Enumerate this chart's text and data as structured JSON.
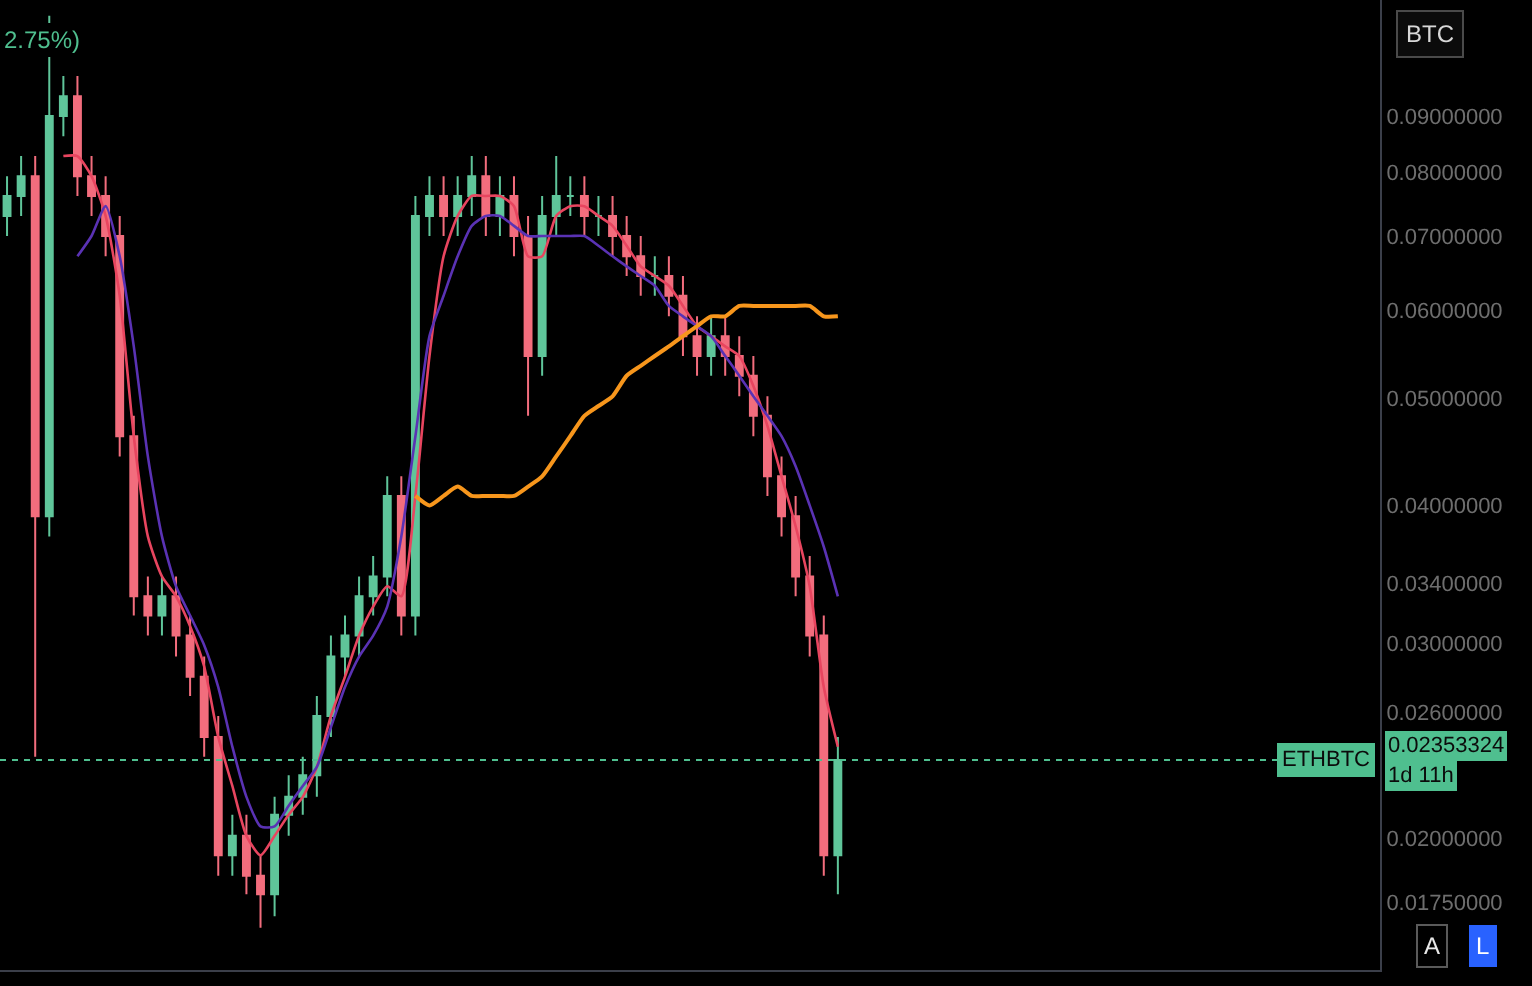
{
  "chart_data": {
    "type": "candlestick",
    "categories": [
      null,
      null,
      null,
      null,
      null,
      null,
      null,
      null,
      null,
      null,
      null,
      null,
      null,
      null,
      null,
      null,
      null,
      null,
      null,
      null,
      null,
      null,
      null,
      null,
      null,
      null,
      null,
      null,
      null,
      null,
      null,
      null,
      null,
      null,
      null,
      null,
      null,
      null,
      null,
      null,
      null,
      null,
      null,
      null,
      null,
      null,
      null,
      null,
      null,
      null,
      null,
      null,
      null,
      null,
      null,
      null,
      null,
      null,
      null,
      null,
      null,
      null,
      null,
      null,
      null,
      null,
      null,
      null,
      null,
      null,
      null,
      null,
      null,
      null,
      null,
      null,
      null,
      null,
      null,
      null,
      null,
      null,
      null,
      null,
      null,
      null,
      null,
      null,
      null,
      null,
      null,
      null,
      null,
      null,
      null,
      null,
      null,
      null
    ],
    "ohlc": [
      [
        0.0731,
        0.0794,
        0.0701,
        0.0762
      ],
      [
        0.0762,
        0.0828,
        0.0731,
        0.0794
      ],
      [
        0.0794,
        0.0828,
        0.0237,
        0.0391
      ],
      [
        0.0391,
        0.1109,
        0.0375,
        0.09
      ],
      [
        0.09,
        0.0978,
        0.0863,
        0.0938
      ],
      [
        0.0938,
        0.0978,
        0.0762,
        0.0794
      ],
      [
        0.0794,
        0.0828,
        0.0731,
        0.0762
      ],
      [
        0.0762,
        0.0794,
        0.0672,
        0.0701
      ],
      [
        0.0701,
        0.0731,
        0.0443,
        0.0462
      ],
      [
        0.0462,
        0.0482,
        0.0318,
        0.0331
      ],
      [
        0.0331,
        0.0345,
        0.0305,
        0.0318
      ],
      [
        0.0318,
        0.0345,
        0.0305,
        0.0331
      ],
      [
        0.0331,
        0.0345,
        0.0292,
        0.0305
      ],
      [
        0.0305,
        0.0318,
        0.0269,
        0.028
      ],
      [
        0.028,
        0.0292,
        0.0237,
        0.0247
      ],
      [
        0.0247,
        0.0258,
        0.0185,
        0.0193
      ],
      [
        0.0193,
        0.021,
        0.0185,
        0.0201
      ],
      [
        0.0201,
        0.021,
        0.0178,
        0.0185
      ],
      [
        0.0185,
        0.0193,
        0.0166,
        0.0178
      ],
      [
        0.0178,
        0.0218,
        0.017,
        0.021
      ],
      [
        0.021,
        0.0228,
        0.0201,
        0.0218
      ],
      [
        0.0218,
        0.0237,
        0.021,
        0.0228
      ],
      [
        0.0228,
        0.0269,
        0.0218,
        0.0258
      ],
      [
        0.0258,
        0.0305,
        0.0247,
        0.0292
      ],
      [
        0.0292,
        0.0318,
        0.028,
        0.0305
      ],
      [
        0.0305,
        0.0345,
        0.0292,
        0.0331
      ],
      [
        0.0331,
        0.036,
        0.0318,
        0.0345
      ],
      [
        0.0345,
        0.0425,
        0.0331,
        0.0408
      ],
      [
        0.0408,
        0.0425,
        0.0305,
        0.0318
      ],
      [
        0.0318,
        0.0762,
        0.0305,
        0.0731
      ],
      [
        0.0731,
        0.0794,
        0.0701,
        0.0762
      ],
      [
        0.0762,
        0.0794,
        0.0701,
        0.0731
      ],
      [
        0.0731,
        0.0794,
        0.0701,
        0.0762
      ],
      [
        0.0762,
        0.0828,
        0.0731,
        0.0794
      ],
      [
        0.0794,
        0.0828,
        0.0701,
        0.0731
      ],
      [
        0.0731,
        0.0794,
        0.0701,
        0.0762
      ],
      [
        0.0762,
        0.0794,
        0.0672,
        0.0701
      ],
      [
        0.0701,
        0.0731,
        0.0482,
        0.0546
      ],
      [
        0.0546,
        0.0762,
        0.0524,
        0.0731
      ],
      [
        0.0731,
        0.0828,
        0.0701,
        0.0762
      ],
      [
        0.0762,
        0.0794,
        0.0731,
        0.0762
      ],
      [
        0.0762,
        0.0794,
        0.0701,
        0.0731
      ],
      [
        0.0731,
        0.0762,
        0.0701,
        0.0731
      ],
      [
        0.0731,
        0.0762,
        0.0672,
        0.0701
      ],
      [
        0.0701,
        0.0731,
        0.0645,
        0.0672
      ],
      [
        0.0672,
        0.0701,
        0.0619,
        0.0645
      ],
      [
        0.0645,
        0.0672,
        0.0619,
        0.0645
      ],
      [
        0.0645,
        0.0672,
        0.0593,
        0.0619
      ],
      [
        0.0619,
        0.0645,
        0.0546,
        0.0569
      ],
      [
        0.0569,
        0.0593,
        0.0524,
        0.0546
      ],
      [
        0.0546,
        0.0593,
        0.0524,
        0.0569
      ],
      [
        0.0569,
        0.0593,
        0.0524,
        0.0546
      ],
      [
        0.0546,
        0.0569,
        0.0502,
        0.0524
      ],
      [
        0.0524,
        0.0546,
        0.0462,
        0.0482
      ],
      [
        0.0482,
        0.0502,
        0.0408,
        0.0425
      ],
      [
        0.0425,
        0.0443,
        0.0375,
        0.0391
      ],
      [
        0.0391,
        0.0408,
        0.0331,
        0.0345
      ],
      [
        0.0345,
        0.036,
        0.0292,
        0.0305
      ],
      [
        0.0305,
        0.0318,
        0.0185,
        0.0193
      ],
      [
        0.0193,
        0.0247,
        0.0178,
        0.02353324
      ],
      null,
      null,
      null,
      null,
      null,
      null,
      null,
      null,
      null,
      null,
      null,
      null,
      null,
      null,
      null,
      null,
      null,
      null,
      null,
      null,
      null,
      null,
      null,
      null,
      null,
      null,
      null,
      null,
      null,
      null,
      null,
      null,
      null,
      null,
      null,
      null,
      null,
      null
    ],
    "colors": [
      "#5fc59a",
      "#5fc59a",
      "#f26d7d",
      "#5fc59a",
      "#5fc59a",
      "#f26d7d",
      "#f26d7d",
      "#f26d7d",
      "#f26d7d",
      "#f26d7d",
      "#f26d7d",
      "#5fc59a",
      "#f26d7d",
      "#f26d7d",
      "#f26d7d",
      "#f26d7d",
      "#5fc59a",
      "#f26d7d",
      "#f26d7d",
      "#5fc59a",
      "#5fc59a",
      "#5fc59a",
      "#5fc59a",
      "#5fc59a",
      "#5fc59a",
      "#5fc59a",
      "#5fc59a",
      "#5fc59a",
      "#f26d7d",
      "#5fc59a",
      "#5fc59a",
      "#f26d7d",
      "#5fc59a",
      "#5fc59a",
      "#f26d7d",
      "#5fc59a",
      "#f26d7d",
      "#f26d7d",
      "#5fc59a",
      "#5fc59a",
      "#5fc59a",
      "#f26d7d",
      "#5fc59a",
      "#f26d7d",
      "#f26d7d",
      "#f26d7d",
      "#5fc59a",
      "#f26d7d",
      "#f26d7d",
      "#f26d7d",
      "#5fc59a",
      "#f26d7d",
      "#f26d7d",
      "#f26d7d",
      "#f26d7d",
      "#f26d7d",
      "#f26d7d",
      "#f26d7d",
      "#f26d7d",
      "#5fc59a",
      null,
      null,
      null,
      null,
      null,
      null,
      null,
      null,
      null,
      null,
      null,
      null,
      null,
      null,
      null,
      null,
      null,
      null,
      null,
      null,
      null,
      null,
      null,
      null,
      null,
      null,
      null,
      null,
      null,
      null,
      null,
      null,
      null,
      null,
      null,
      null,
      null,
      null
    ],
    "series": [
      {
        "type": "line",
        "color": "#e8455f",
        "values": [
          null,
          null,
          null,
          null,
          0.0828,
          0.0828,
          0.0794,
          0.0731,
          0.0619,
          0.0462,
          0.0375,
          0.0345,
          0.0331,
          0.0311,
          0.0286,
          0.0247,
          0.0223,
          0.0201,
          0.0193,
          0.0201,
          0.021,
          0.0218,
          0.0232,
          0.0258,
          0.028,
          0.0305,
          0.0324,
          0.0338,
          0.0331,
          0.0408,
          0.0546,
          0.0672,
          0.0731,
          0.0762,
          0.0762,
          0.0762,
          0.0746,
          0.0672,
          0.0672,
          0.0731,
          0.0746,
          0.0746,
          0.0731,
          0.0716,
          0.0687,
          0.0658,
          0.0645,
          0.0632,
          0.0606,
          0.0581,
          0.0569,
          0.0557,
          0.0546,
          0.0513,
          0.0472,
          0.0425,
          0.0383,
          0.0338,
          0.0274,
          0.0242,
          null,
          null,
          null,
          null,
          null,
          null,
          null,
          null,
          null,
          null,
          null,
          null,
          null,
          null,
          null,
          null,
          null,
          null,
          null,
          null,
          null,
          null,
          null,
          null,
          null,
          null,
          null,
          null,
          null,
          null,
          null,
          null,
          null,
          null,
          null,
          null,
          null,
          null
        ]
      },
      {
        "type": "line",
        "color": "#5a32b4",
        "values": [
          null,
          null,
          null,
          null,
          null,
          0.0672,
          0.0701,
          0.0746,
          0.0672,
          0.0557,
          0.0443,
          0.0375,
          0.0338,
          0.0318,
          0.0299,
          0.0274,
          0.0242,
          0.0218,
          0.0205,
          0.0205,
          0.0214,
          0.0223,
          0.0232,
          0.0252,
          0.0274,
          0.0292,
          0.0305,
          0.0324,
          0.0375,
          0.0462,
          0.0569,
          0.0619,
          0.0672,
          0.0716,
          0.0731,
          0.0731,
          0.0716,
          0.0701,
          0.0701,
          0.0701,
          0.0701,
          0.0701,
          0.0687,
          0.0672,
          0.0658,
          0.0645,
          0.0632,
          0.0606,
          0.0593,
          0.0581,
          0.0569,
          0.0546,
          0.0524,
          0.0502,
          0.0482,
          0.0462,
          0.0434,
          0.04,
          0.0367,
          0.0331,
          null,
          null,
          null,
          null,
          null,
          null,
          null,
          null,
          null,
          null,
          null,
          null,
          null,
          null,
          null,
          null,
          null,
          null,
          null,
          null,
          null,
          null,
          null,
          null,
          null,
          null,
          null,
          null,
          null,
          null,
          null,
          null,
          null,
          null,
          null,
          null,
          null,
          null
        ]
      },
      {
        "type": "line",
        "color": "#f7961c",
        "values": [
          null,
          null,
          null,
          null,
          null,
          null,
          null,
          null,
          null,
          null,
          null,
          null,
          null,
          null,
          null,
          null,
          null,
          null,
          null,
          null,
          null,
          null,
          null,
          null,
          null,
          null,
          null,
          null,
          null,
          0.0408,
          0.04,
          0.0408,
          0.0416,
          0.0408,
          0.0408,
          0.0408,
          0.0408,
          0.0416,
          0.0425,
          0.0443,
          0.0462,
          0.0482,
          0.0492,
          0.0502,
          0.0524,
          0.0535,
          0.0546,
          0.0557,
          0.0569,
          0.0581,
          0.0593,
          0.0593,
          0.0606,
          0.0606,
          0.0606,
          0.0606,
          0.0606,
          0.0606,
          0.0593,
          0.0593,
          null,
          null,
          null,
          null,
          null,
          null,
          null,
          null,
          null,
          null,
          null,
          null,
          null,
          null,
          null,
          null,
          null,
          null,
          null,
          null,
          null,
          null,
          null,
          null,
          null,
          null,
          null,
          null,
          null,
          null,
          null,
          null,
          null,
          null,
          null,
          null,
          null,
          null
        ]
      }
    ],
    "ylim": [
      0.0152,
      0.1146
    ],
    "yticks": [
      {
        "value": 0.09,
        "label": "0.09000000"
      },
      {
        "value": 0.08,
        "label": "0.08000000"
      },
      {
        "value": 0.07,
        "label": "0.07000000"
      },
      {
        "value": 0.06,
        "label": "0.06000000"
      },
      {
        "value": 0.05,
        "label": "0.05000000"
      },
      {
        "value": 0.04,
        "label": "0.04000000"
      },
      {
        "value": 0.034,
        "label": "0.03400000"
      },
      {
        "value": 0.03,
        "label": "0.03000000"
      },
      {
        "value": 0.026,
        "label": "0.02600000"
      },
      {
        "value": 0.02,
        "label": "0.02000000"
      },
      {
        "value": 0.0175,
        "label": "0.01750000"
      }
    ],
    "log": "y",
    "grid": false,
    "tick_labels": "y",
    "ref_lines": [
      {
        "axis": "y",
        "value": 0.02353324,
        "label": "ETHBTC",
        "color": "#4fbf8f",
        "line_style": "dotted"
      }
    ],
    "annotations": [
      "2.75%)",
      "BTC",
      "0.02353324",
      "1d 11h",
      "A",
      "L"
    ]
  }
}
